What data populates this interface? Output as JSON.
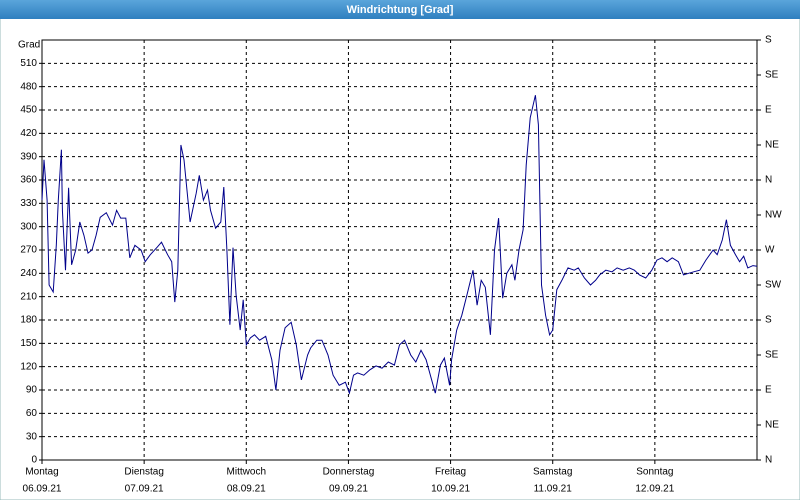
{
  "chart_data": {
    "type": "line",
    "title": "Windrichtung [Grad]",
    "y_label": "Grad",
    "x": [
      0,
      0.02,
      0.05,
      0.07,
      0.11,
      0.14,
      0.16,
      0.19,
      0.2,
      0.23,
      0.26,
      0.29,
      0.33,
      0.37,
      0.41,
      0.45,
      0.49,
      0.53,
      0.57,
      0.63,
      0.69,
      0.73,
      0.77,
      0.82,
      0.86,
      0.91,
      0.97,
      1.01,
      1.06,
      1.13,
      1.17,
      1.23,
      1.27,
      1.3,
      1.33,
      1.36,
      1.39,
      1.45,
      1.51,
      1.54,
      1.58,
      1.62,
      1.65,
      1.7,
      1.75,
      1.78,
      1.81,
      1.84,
      1.87,
      1.9,
      1.94,
      1.97,
      2,
      2.04,
      2.08,
      2.13,
      2.19,
      2.25,
      2.29,
      2.33,
      2.38,
      2.44,
      2.49,
      2.54,
      2.6,
      2.63,
      2.69,
      2.74,
      2.8,
      2.85,
      2.91,
      2.97,
      3.01,
      3.05,
      3.09,
      3.15,
      3.21,
      3.27,
      3.33,
      3.39,
      3.45,
      3.5,
      3.55,
      3.61,
      3.66,
      3.71,
      3.76,
      3.81,
      3.85,
      3.9,
      3.94,
      3.99,
      4.01,
      4.06,
      4.11,
      4.16,
      4.22,
      4.26,
      4.3,
      4.34,
      4.39,
      4.43,
      4.47,
      4.51,
      4.55,
      4.6,
      4.63,
      4.67,
      4.71,
      4.74,
      4.78,
      4.83,
      4.86,
      4.89,
      4.93,
      4.97,
      5,
      5.04,
      5.09,
      5.15,
      5.21,
      5.25,
      5.31,
      5.37,
      5.42,
      5.46,
      5.52,
      5.58,
      5.63,
      5.69,
      5.75,
      5.8,
      5.85,
      5.91,
      5.97,
      6.02,
      6.07,
      6.12,
      6.17,
      6.23,
      6.28,
      6.33,
      6.38,
      6.44,
      6.5,
      6.57,
      6.61,
      6.66,
      6.7,
      6.74,
      6.79,
      6.83,
      6.87,
      6.91,
      6.96,
      7
    ],
    "series": [
      {
        "name": "Windrichtung",
        "color": "#00008b",
        "values": [
          334,
          386,
          334,
          225,
          216,
          276,
          334,
          399,
          321,
          244,
          350,
          251,
          270,
          306,
          289,
          266,
          270,
          289,
          312,
          318,
          302,
          321,
          311,
          311,
          260,
          276,
          270,
          255,
          264,
          274,
          280,
          264,
          255,
          203,
          244,
          405,
          386,
          306,
          343,
          366,
          334,
          347,
          321,
          298,
          306,
          351,
          270,
          174,
          273,
          212,
          167,
          206,
          148,
          157,
          161,
          154,
          159,
          129,
          90,
          141,
          170,
          177,
          148,
          103,
          135,
          144,
          154,
          154,
          135,
          109,
          96,
          100,
          86,
          109,
          112,
          109,
          116,
          121,
          118,
          126,
          122,
          148,
          154,
          135,
          126,
          141,
          129,
          105,
          86,
          122,
          131,
          96,
          129,
          167,
          186,
          212,
          244,
          199,
          231,
          222,
          161,
          270,
          311,
          208,
          240,
          251,
          231,
          270,
          296,
          379,
          440,
          469,
          431,
          225,
          186,
          161,
          167,
          219,
          231,
          247,
          244,
          247,
          234,
          225,
          231,
          238,
          244,
          242,
          247,
          244,
          247,
          244,
          238,
          234,
          244,
          257,
          260,
          255,
          260,
          255,
          238,
          240,
          242,
          244,
          257,
          270,
          264,
          283,
          309,
          276,
          264,
          255,
          262,
          247,
          250,
          249
        ]
      }
    ],
    "xlim": [
      0,
      7
    ],
    "xticks": [
      {
        "value": 0,
        "label": "Montag"
      },
      {
        "value": 1,
        "label": "Dienstag"
      },
      {
        "value": 2,
        "label": "Mittwoch"
      },
      {
        "value": 3,
        "label": "Donnerstag"
      },
      {
        "value": 4,
        "label": "Freitag"
      },
      {
        "value": 5,
        "label": "Samstag"
      },
      {
        "value": 6,
        "label": "Sonntag"
      }
    ],
    "x_dates": [
      "06.09.21",
      "07.09.21",
      "08.09.21",
      "09.09.21",
      "10.09.21",
      "11.09.21",
      "12.09.21"
    ],
    "ylim": [
      0,
      540
    ],
    "yticks": [
      0,
      30,
      60,
      90,
      120,
      150,
      180,
      210,
      240,
      270,
      300,
      330,
      360,
      390,
      420,
      450,
      480,
      510
    ],
    "y2lim": [
      0,
      540
    ],
    "y2ticks": [
      {
        "value": 0,
        "label": "N"
      },
      {
        "value": 45,
        "label": "NE"
      },
      {
        "value": 90,
        "label": "E"
      },
      {
        "value": 135,
        "label": "SE"
      },
      {
        "value": 180,
        "label": "S"
      },
      {
        "value": 225,
        "label": "SW"
      },
      {
        "value": 270,
        "label": "W"
      },
      {
        "value": 315,
        "label": "NW"
      },
      {
        "value": 360,
        "label": "N"
      },
      {
        "value": 405,
        "label": "NE"
      },
      {
        "value": 450,
        "label": "E"
      },
      {
        "value": 495,
        "label": "SE"
      },
      {
        "value": 540,
        "label": "S"
      }
    ],
    "grid": true
  }
}
